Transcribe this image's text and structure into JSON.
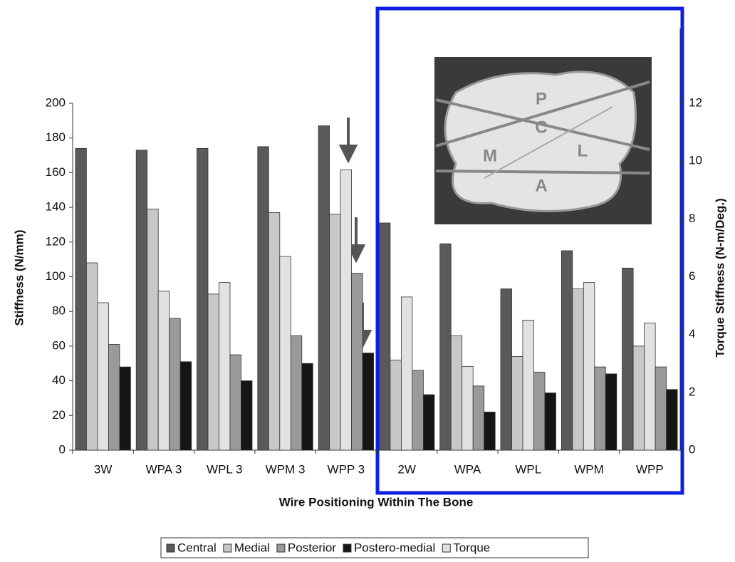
{
  "chart_data": {
    "type": "bar",
    "categories": [
      "3W",
      "WPA 3",
      "WPL 3",
      "WPM 3",
      "WPP 3",
      "2W",
      "WPA",
      "WPL",
      "WPM",
      "WPP"
    ],
    "series": [
      {
        "name": "Central",
        "color": "#5a5a5a",
        "values": [
          174,
          173,
          174,
          175,
          187,
          131,
          119,
          93,
          115,
          105
        ]
      },
      {
        "name": "Medial",
        "color": "#c8c8c8",
        "values": [
          108,
          139,
          90,
          137,
          136,
          52,
          66,
          54,
          93,
          60
        ]
      },
      {
        "name": "Posterior",
        "color": "#9a9a9a",
        "values": [
          61,
          76,
          55,
          66,
          102,
          46,
          37,
          45,
          48,
          48
        ]
      },
      {
        "name": "Postero-medial",
        "color": "#151515",
        "values": [
          48,
          51,
          40,
          50,
          56,
          32,
          22,
          33,
          44,
          35
        ]
      },
      {
        "name": "Torque",
        "color": "#e2e2e2",
        "axis": "y2",
        "values": [
          5.1,
          5.5,
          5.8,
          6.7,
          9.7,
          5.3,
          2.9,
          4.5,
          5.8,
          4.4
        ]
      }
    ],
    "ylabel": "Stiffness (N/mm)",
    "y2label": "Torque Stiffness (N-m/Deg.)",
    "xlabel": "Wire Positioning Within The Bone",
    "ylim": [
      0,
      200
    ],
    "yticks": [
      0,
      20,
      40,
      60,
      80,
      100,
      120,
      140,
      160,
      180,
      200
    ],
    "y2lim": [
      0,
      12
    ],
    "y2ticks": [
      0,
      2,
      4,
      6,
      8,
      10,
      12
    ],
    "legend": "bottom",
    "inset_labels": [
      "P",
      "C",
      "M",
      "L",
      "A"
    ]
  }
}
